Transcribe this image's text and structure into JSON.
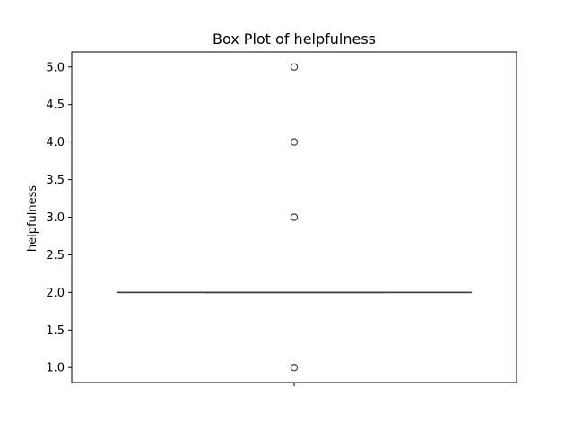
{
  "chart_data": {
    "type": "box",
    "title": "Box Plot of helpfulness",
    "xlabel": "",
    "ylabel": "helpfulness",
    "ylim": [
      0.8,
      5.2
    ],
    "yticks": [
      1.0,
      1.5,
      2.0,
      2.5,
      3.0,
      3.5,
      4.0,
      4.5,
      5.0
    ],
    "ytick_labels": [
      "1.0",
      "1.5",
      "2.0",
      "2.5",
      "3.0",
      "3.5",
      "4.0",
      "4.5",
      "5.0"
    ],
    "grid": false,
    "series": [
      {
        "min": 2.0,
        "q1": 2.0,
        "median": 2.0,
        "q3": 2.0,
        "max": 2.0,
        "outliers": [
          1.0,
          3.0,
          4.0,
          5.0
        ]
      }
    ],
    "colors": {
      "box_line": "#3f3f3f",
      "outlier_edge": "#3f3f3f",
      "axes": "#000000"
    }
  }
}
